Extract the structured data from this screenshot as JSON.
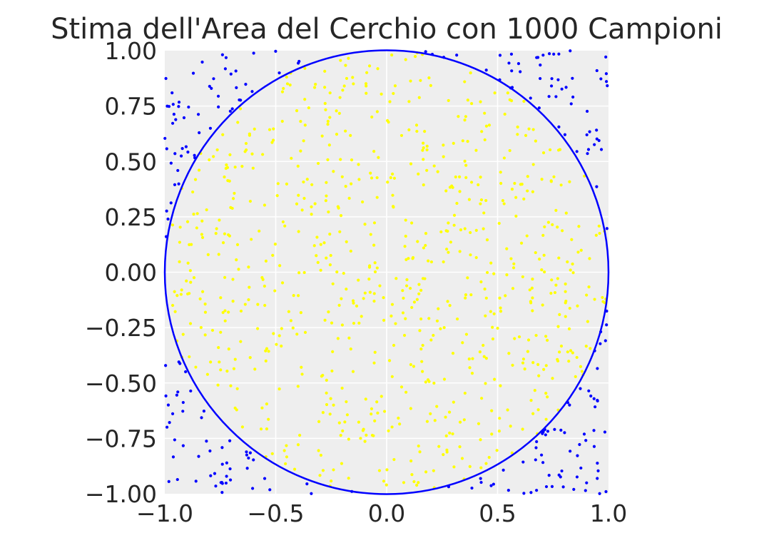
{
  "chart_data": {
    "type": "scatter",
    "title": "Stima dell'Area del Cerchio con 1000 Campioni",
    "xlabel": "",
    "ylabel": "",
    "xlim": [
      -1.0,
      1.0
    ],
    "ylim": [
      -1.0,
      1.0
    ],
    "x_ticks": [
      -1.0,
      -0.5,
      0.0,
      0.5,
      1.0
    ],
    "x_tick_labels": [
      "−1.0",
      "−0.5",
      "0.0",
      "0.5",
      "1.0"
    ],
    "y_ticks": [
      1.0,
      0.75,
      0.5,
      0.25,
      0.0,
      -0.25,
      -0.5,
      -0.75,
      -1.0
    ],
    "y_tick_labels": [
      "1.00",
      "0.75",
      "0.50",
      "0.25",
      "0.00",
      "−0.25",
      "−0.50",
      "−0.75",
      "−1.00"
    ],
    "grid": true,
    "legend": "none",
    "sample_count": 1000,
    "circle": {
      "center": [
        0,
        0
      ],
      "radius": 1,
      "color": "#0000ff"
    },
    "inside_color": "#ffff00",
    "outside_color": "#0000ff",
    "background_color": "#eeeeee",
    "sampling": "uniform random points on [-1, 1] x [-1, 1]",
    "random_seed": 1000
  }
}
